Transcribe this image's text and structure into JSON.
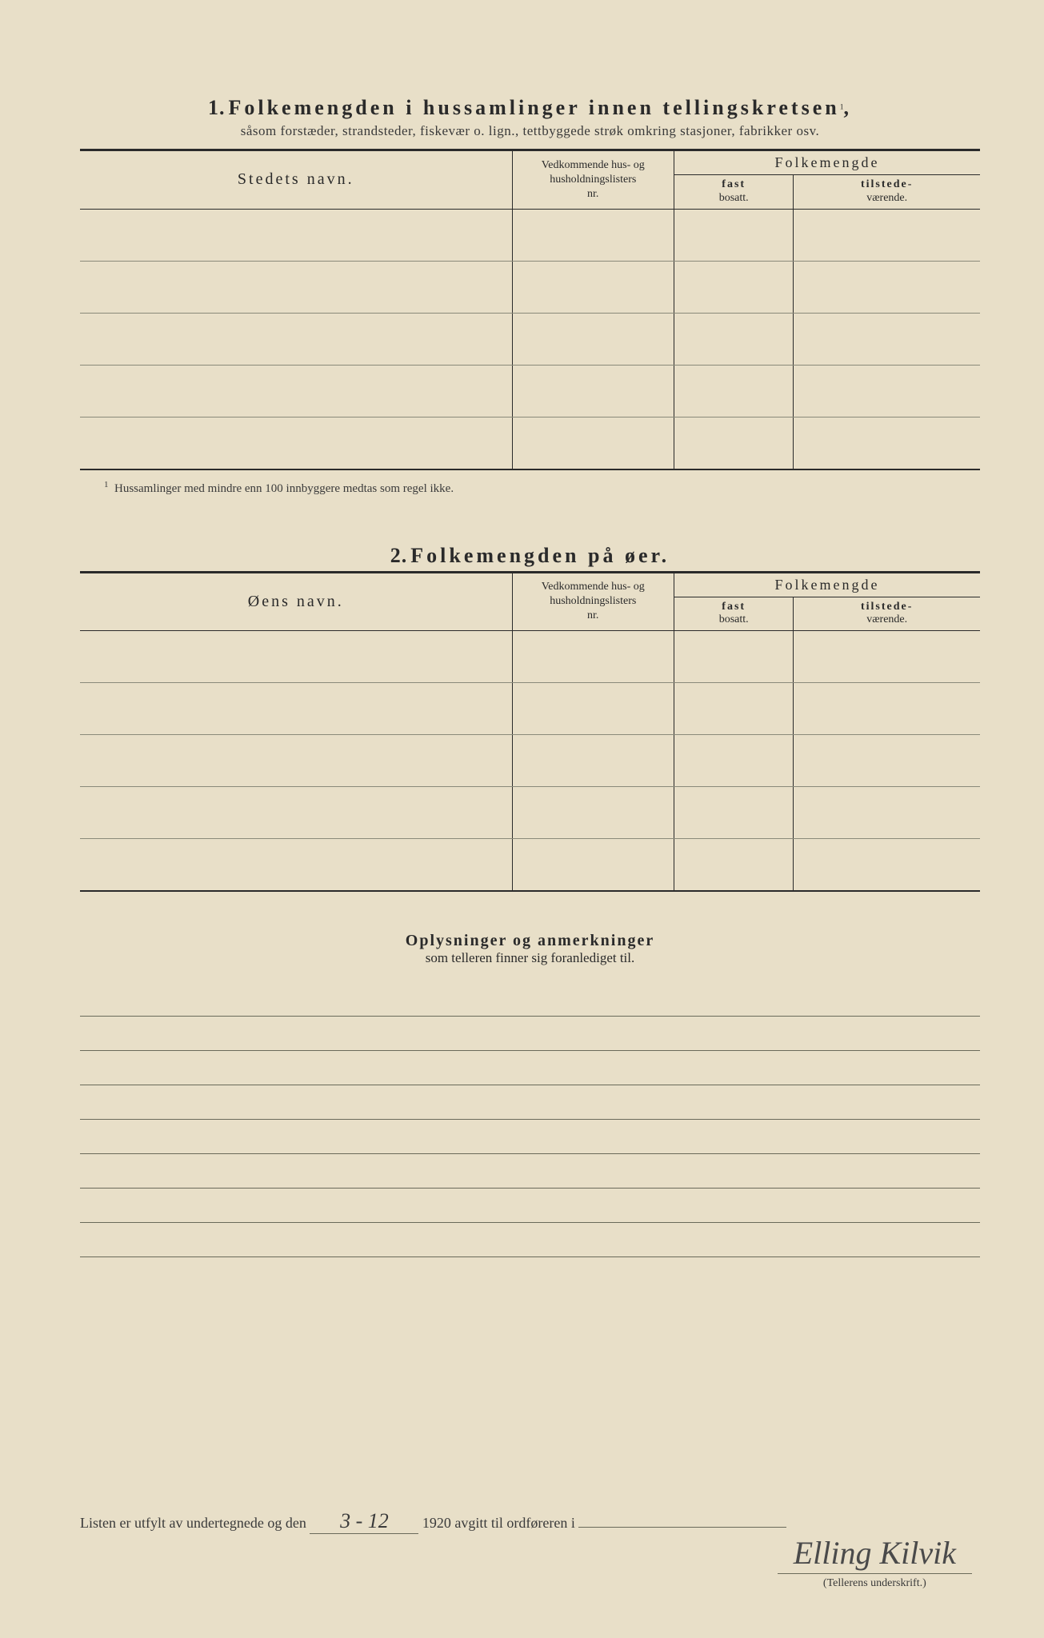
{
  "section1": {
    "number": "1.",
    "title": "Folkemengden i hussamlinger innen tellingskretsen",
    "title_sup": "1",
    "subtitle": "såsom forstæder, strandsteder, fiskevær o. lign., tettbyggede strøk omkring stasjoner, fabrikker osv.",
    "headers": {
      "name": "Stedets navn.",
      "nr_l1": "Vedkommende hus- og",
      "nr_l2": "husholdningslisters",
      "nr_l3": "nr.",
      "folk": "Folkemengde",
      "fast_b": "fast",
      "fast": "bosatt.",
      "til_b": "tilstede-",
      "til": "værende."
    },
    "row_count": 5,
    "footnote_sup": "1",
    "footnote": "Hussamlinger med mindre enn 100 innbyggere medtas som regel ikke."
  },
  "section2": {
    "number": "2.",
    "title": "Folkemengden på øer.",
    "headers": {
      "name": "Øens navn.",
      "nr_l1": "Vedkommende hus- og",
      "nr_l2": "husholdningslisters",
      "nr_l3": "nr.",
      "folk": "Folkemengde",
      "fast_b": "fast",
      "fast": "bosatt.",
      "til_b": "tilstede-",
      "til": "værende."
    },
    "row_count": 5
  },
  "section3": {
    "title": "Oplysninger og anmerkninger",
    "subtitle": "som telleren finner sig foranlediget til.",
    "line_count": 8
  },
  "footer": {
    "pre": "Listen er utfylt av undertegnede og den",
    "date_fill": "3 - 12",
    "year": "1920",
    "post": "avgitt til ordføreren i"
  },
  "signature": {
    "name": "Elling Kilvik",
    "caption": "(Tellerens underskrift.)"
  },
  "colors": {
    "paper": "#e8dfc8",
    "ink": "#2a2a2a",
    "rule": "#6a6a5a"
  }
}
